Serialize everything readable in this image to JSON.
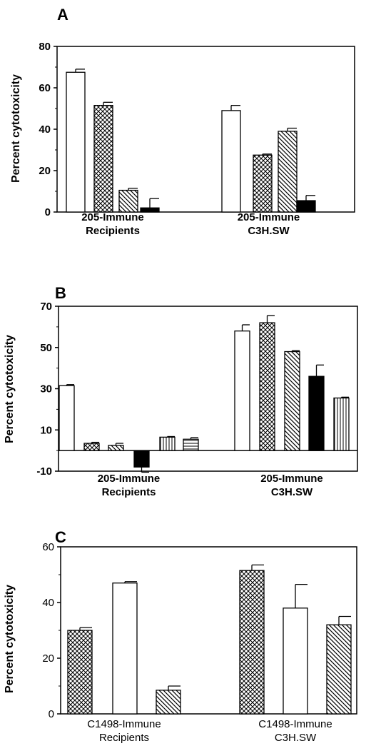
{
  "chart_data": [
    {
      "type": "bar",
      "panel_label": "A",
      "ylabel": "Percent cytotoxicity",
      "ylim": [
        0,
        80
      ],
      "yticks": [
        0,
        20,
        40,
        60,
        80
      ],
      "ytick_labels": [
        "0",
        "20",
        "40",
        "60",
        "80"
      ],
      "categories": [
        "205-Immune\nRecipients",
        "205-Immune\nC3H.SW"
      ],
      "series": [
        {
          "pattern": "open",
          "values": [
            67.5,
            49
          ],
          "errors": [
            1.5,
            2.5
          ]
        },
        {
          "pattern": "crosshatch",
          "values": [
            51.5,
            27.5
          ],
          "errors": [
            1.5,
            0.5
          ]
        },
        {
          "pattern": "diagonal",
          "values": [
            10.5,
            39
          ],
          "errors": [
            1,
            1.5
          ]
        },
        {
          "pattern": "solid",
          "values": [
            2,
            5.5
          ],
          "errors": [
            4.5,
            2.5
          ]
        }
      ]
    },
    {
      "type": "bar",
      "panel_label": "B",
      "ylabel": "Percent cytotoxicity",
      "ylim": [
        -10,
        70
      ],
      "yticks": [
        -10,
        10,
        30,
        50,
        70
      ],
      "ytick_labels": [
        "-10",
        "10",
        "30",
        "50",
        "70"
      ],
      "categories": [
        "205-Immune\nRecipients",
        "205-Immune\nC3H.SW"
      ],
      "series": [
        {
          "pattern": "open",
          "values": [
            31.5,
            58
          ],
          "errors": [
            0.5,
            3
          ]
        },
        {
          "pattern": "crosshatch",
          "values": [
            3.5,
            62
          ],
          "errors": [
            0.5,
            3.5
          ]
        },
        {
          "pattern": "diagonal",
          "values": [
            2.5,
            48
          ],
          "errors": [
            1,
            0.5
          ]
        },
        {
          "pattern": "solid",
          "values": [
            -8,
            36
          ],
          "errors": [
            2.5,
            5.5
          ]
        },
        {
          "pattern": "vertical",
          "values": [
            6.5,
            25.5
          ],
          "errors": [
            0.3,
            0.4
          ]
        },
        {
          "pattern": "horizontal",
          "values": [
            5.5,
            null
          ],
          "errors": [
            0.8,
            null
          ]
        }
      ]
    },
    {
      "type": "bar",
      "panel_label": "C",
      "ylabel": "Percent cytotoxicity",
      "ylim": [
        0,
        60
      ],
      "yticks": [
        0,
        20,
        40,
        60
      ],
      "ytick_labels": [
        "0",
        "20",
        "40",
        "60"
      ],
      "categories": [
        "C1498-Immune\nRecipients",
        "C1498-Immune\nC3H.SW"
      ],
      "series": [
        {
          "pattern": "crosshatch",
          "values": [
            30,
            51.5
          ],
          "errors": [
            1,
            2
          ]
        },
        {
          "pattern": "open",
          "values": [
            47,
            38
          ],
          "errors": [
            0.5,
            8.5
          ]
        },
        {
          "pattern": "diagonal",
          "values": [
            8.5,
            32
          ],
          "errors": [
            1.5,
            3
          ]
        }
      ]
    }
  ]
}
